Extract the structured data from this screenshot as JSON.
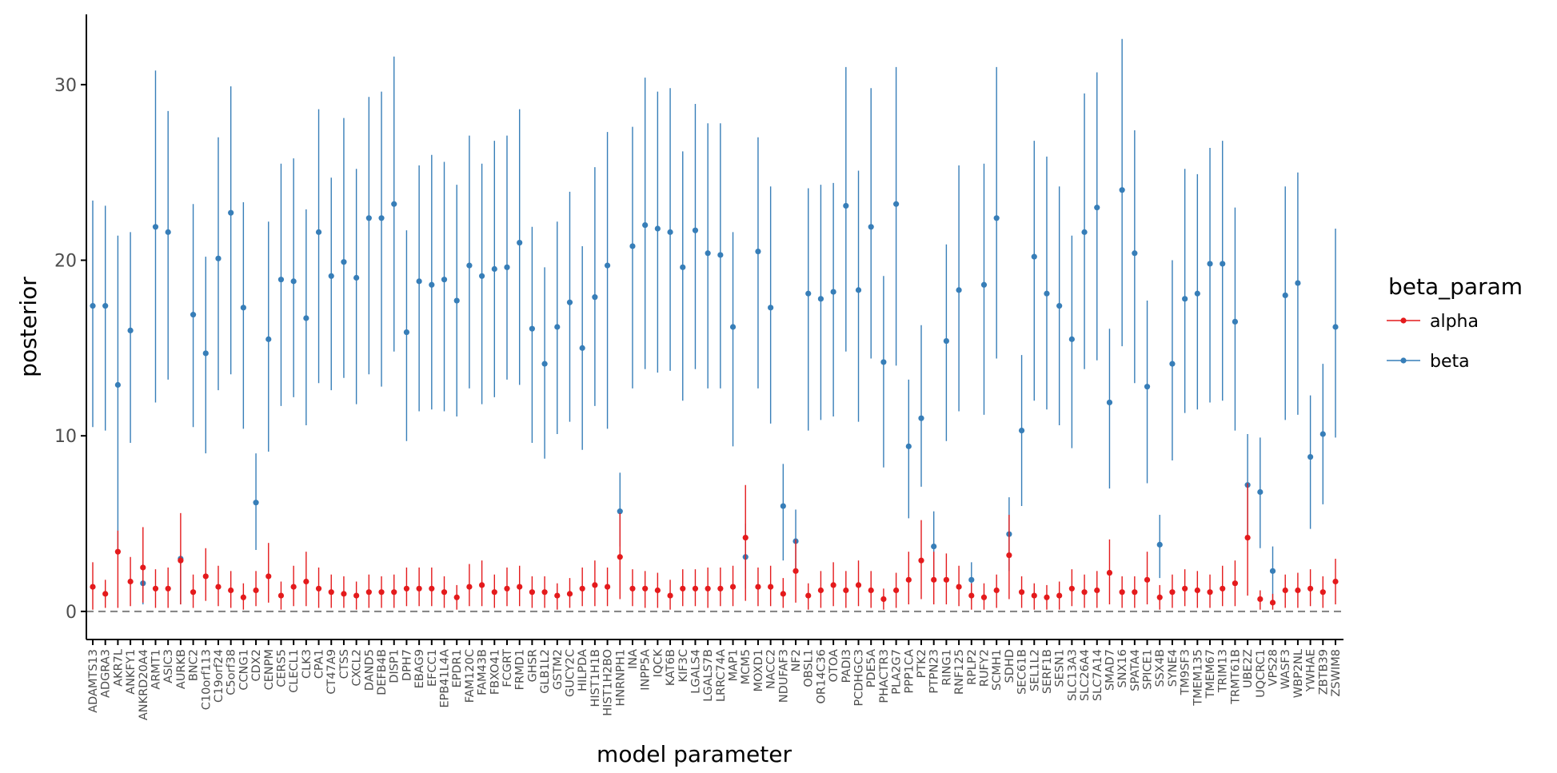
{
  "chart_data": {
    "type": "scatter",
    "subtype": "pointrange",
    "title": "",
    "xlabel": "model parameter",
    "ylabel": "posterior",
    "ylim": [
      -1.6,
      34.0
    ],
    "yticks": [
      0,
      10,
      20,
      30
    ],
    "reference_line": 0,
    "grid": false,
    "legend_title": "beta_param",
    "legend_position": "right",
    "categories": [
      "ADAMTS13",
      "ADGRA3",
      "AKR7L",
      "ANKFY1",
      "ANKRD20A4",
      "ARMT1",
      "ASIC3",
      "AURKB",
      "BNC2",
      "C10orf113",
      "C19orf24",
      "C5orf38",
      "CCNG1",
      "CDX2",
      "CENPM",
      "CERS5",
      "CLECL1",
      "CLK3",
      "CPA1",
      "CT47A9",
      "CTSS",
      "CXCL2",
      "DAND5",
      "DEFB4B",
      "DISP1",
      "DPH7",
      "EBAG9",
      "EFCC1",
      "EPB41L4A",
      "EPDR1",
      "FAM120C",
      "FAM43B",
      "FBXO41",
      "FCGRT",
      "FRMD1",
      "GHSR",
      "GLB1L2",
      "GSTM2",
      "GUCY2C",
      "HILPDA",
      "HIST1H1B",
      "HIST1H2BO",
      "HNRNPH1",
      "INA",
      "INPP5A",
      "IQCK",
      "KAT6B",
      "KIF3C",
      "LGALS4",
      "LGALS7B",
      "LRRC74A",
      "MAP1",
      "MCM5",
      "MOXD1",
      "NACC2",
      "NDUFAF3",
      "NF2",
      "OBSL1",
      "OR14C36",
      "OTOA",
      "PADI3",
      "PCDHGC3",
      "PDE5A",
      "PHACTR3",
      "PLA2G7",
      "PPP1CA",
      "PTK2",
      "PTPN23",
      "RING1",
      "RNF125",
      "RPLP2",
      "RUFY2",
      "SCMH1",
      "SDHD",
      "SEC61B",
      "SEL1L2",
      "SERF1B",
      "SESN1",
      "SLC13A3",
      "SLC26A4",
      "SLC7A14",
      "SMAD7",
      "SNX16",
      "SPATA4",
      "SPICE1",
      "SSX4B",
      "SYNE4",
      "TM9SF3",
      "TMEM135",
      "TMEM67",
      "TRIM13",
      "TRMT61B",
      "UBE2Z",
      "UQCRC1",
      "VPS28",
      "WASF3",
      "WBP2NL",
      "YWHAE",
      "ZBTB39",
      "ZSWIM8"
    ],
    "series": [
      {
        "name": "alpha",
        "color": "#e41a1c",
        "values": [
          1.4,
          1.0,
          3.4,
          1.7,
          2.5,
          1.3,
          1.3,
          2.9,
          1.1,
          2.0,
          1.4,
          1.2,
          0.8,
          1.2,
          2.0,
          0.9,
          1.4,
          1.7,
          1.3,
          1.1,
          1.0,
          0.9,
          1.1,
          1.1,
          1.1,
          1.3,
          1.3,
          1.3,
          1.1,
          0.8,
          1.4,
          1.5,
          1.1,
          1.3,
          1.4,
          1.1,
          1.1,
          0.9,
          1.0,
          1.3,
          1.5,
          1.4,
          3.1,
          1.3,
          1.3,
          1.2,
          0.9,
          1.3,
          1.3,
          1.3,
          1.3,
          1.4,
          4.2,
          1.4,
          1.4,
          1.0,
          2.3,
          0.9,
          1.2,
          1.5,
          1.2,
          1.5,
          1.2,
          0.7,
          1.2,
          1.8,
          2.9,
          1.8,
          1.8,
          1.4,
          0.9,
          0.8,
          1.2,
          3.2,
          1.1,
          0.9,
          0.8,
          0.9,
          1.3,
          1.1,
          1.2,
          2.2,
          1.1,
          1.1,
          1.8,
          0.8,
          1.1,
          1.3,
          1.2,
          1.1,
          1.3,
          1.6,
          4.2,
          0.7,
          0.5,
          1.2,
          1.2,
          1.3,
          1.1,
          1.7
        ],
        "lower": [
          0.1,
          0.2,
          0.2,
          0.3,
          0.5,
          0.2,
          0.2,
          0.4,
          0.2,
          0.6,
          0.3,
          0.2,
          0.1,
          0.3,
          0.5,
          0.1,
          0.3,
          0.3,
          0.2,
          0.2,
          0.2,
          0.1,
          0.2,
          0.2,
          0.2,
          0.3,
          0.3,
          0.3,
          0.2,
          0.1,
          0.3,
          0.3,
          0.2,
          0.3,
          0.3,
          0.2,
          0.2,
          0.1,
          0.2,
          0.3,
          0.3,
          0.3,
          0.7,
          0.3,
          0.2,
          0.2,
          0.1,
          0.3,
          0.3,
          0.2,
          0.3,
          0.3,
          0.6,
          0.3,
          0.3,
          0.2,
          0.5,
          0.1,
          0.2,
          0.3,
          0.2,
          0.3,
          0.2,
          0.1,
          0.2,
          0.4,
          0.7,
          0.4,
          0.4,
          0.3,
          0.1,
          0.1,
          0.2,
          0.7,
          0.2,
          0.1,
          0.1,
          0.1,
          0.3,
          0.2,
          0.2,
          0.4,
          0.2,
          0.2,
          0.4,
          0.1,
          0.2,
          0.3,
          0.2,
          0.2,
          0.3,
          0.3,
          0.9,
          0.1,
          0.1,
          0.2,
          0.2,
          0.3,
          0.2,
          0.4
        ],
        "upper": [
          2.8,
          1.8,
          4.6,
          3.1,
          4.8,
          2.4,
          2.5,
          5.6,
          2.1,
          3.6,
          2.6,
          2.3,
          1.6,
          2.3,
          3.9,
          1.7,
          2.6,
          3.4,
          2.5,
          2.1,
          2.0,
          1.7,
          2.1,
          2.0,
          2.1,
          2.5,
          2.5,
          2.5,
          2.0,
          1.5,
          2.7,
          2.9,
          2.1,
          2.5,
          2.6,
          2.0,
          2.0,
          1.6,
          1.9,
          2.5,
          2.9,
          2.5,
          5.6,
          2.4,
          2.3,
          2.2,
          1.8,
          2.4,
          2.4,
          2.5,
          2.5,
          2.6,
          7.2,
          2.5,
          2.6,
          1.9,
          4.1,
          1.6,
          2.3,
          2.8,
          2.3,
          2.9,
          2.3,
          1.3,
          2.2,
          3.4,
          5.2,
          3.4,
          3.3,
          2.6,
          1.6,
          1.6,
          2.1,
          5.5,
          2.0,
          1.6,
          1.5,
          1.7,
          2.4,
          2.1,
          2.3,
          4.1,
          2.0,
          2.0,
          3.4,
          1.5,
          2.1,
          2.4,
          2.3,
          2.1,
          2.6,
          2.9,
          7.3,
          1.2,
          1.0,
          2.1,
          2.2,
          2.4,
          2.0,
          3.0
        ]
      },
      {
        "name": "beta",
        "color": "#377eb8",
        "values": [
          17.4,
          17.4,
          12.9,
          16.0,
          1.6,
          21.9,
          21.6,
          3.0,
          16.9,
          14.7,
          20.1,
          22.7,
          17.3,
          6.2,
          15.5,
          18.9,
          18.8,
          16.7,
          21.6,
          19.1,
          19.9,
          19.0,
          22.4,
          22.4,
          23.2,
          15.9,
          18.8,
          18.6,
          18.9,
          17.7,
          19.7,
          19.1,
          19.5,
          19.6,
          21.0,
          16.1,
          14.1,
          16.2,
          17.6,
          15.0,
          17.9,
          19.7,
          5.7,
          20.8,
          22.0,
          21.8,
          21.6,
          19.6,
          21.7,
          20.4,
          20.3,
          16.2,
          3.1,
          20.5,
          17.3,
          6.0,
          4.0,
          18.1,
          17.8,
          18.2,
          23.1,
          18.3,
          21.9,
          14.2,
          23.2,
          9.4,
          11.0,
          3.7,
          15.4,
          18.3,
          1.8,
          18.6,
          22.4,
          4.4,
          10.3,
          20.2,
          18.1,
          17.4,
          15.5,
          21.6,
          23.0,
          11.9,
          24.0,
          20.4,
          12.8,
          3.8,
          14.1,
          17.8,
          18.1,
          19.8,
          19.8,
          16.5,
          7.2,
          6.8,
          2.3,
          18.0,
          18.7,
          8.8,
          10.1,
          16.2
        ],
        "lower": [
          10.5,
          10.3,
          3.5,
          9.6,
          0.4,
          11.9,
          13.2,
          0.4,
          10.5,
          9.0,
          12.6,
          13.5,
          10.4,
          3.5,
          9.1,
          11.7,
          12.2,
          10.6,
          13.0,
          12.6,
          13.3,
          11.8,
          13.5,
          12.8,
          14.8,
          9.7,
          11.4,
          11.5,
          11.4,
          11.1,
          12.7,
          11.8,
          12.2,
          13.2,
          12.9,
          9.6,
          8.7,
          10.1,
          10.8,
          9.2,
          11.7,
          10.4,
          3.7,
          12.7,
          13.8,
          13.6,
          13.7,
          12.0,
          13.8,
          12.7,
          12.7,
          9.4,
          1.3,
          12.7,
          10.7,
          2.9,
          2.3,
          10.3,
          10.9,
          11.1,
          14.8,
          10.8,
          14.4,
          8.2,
          14.0,
          5.3,
          7.1,
          1.9,
          9.7,
          11.4,
          0.6,
          11.2,
          14.4,
          2.3,
          6.0,
          12.0,
          11.5,
          10.6,
          9.3,
          13.8,
          14.3,
          7.0,
          15.1,
          13.0,
          7.3,
          1.9,
          8.6,
          11.3,
          11.5,
          11.9,
          12.0,
          10.3,
          4.3,
          3.6,
          0.6,
          10.9,
          11.2,
          4.7,
          6.1,
          9.9
        ],
        "upper": [
          23.4,
          23.1,
          21.4,
          21.6,
          2.7,
          30.8,
          28.5,
          3.2,
          23.2,
          20.2,
          27.0,
          29.9,
          23.3,
          9.0,
          22.2,
          25.5,
          25.8,
          22.9,
          28.6,
          24.7,
          28.1,
          25.2,
          29.3,
          29.6,
          31.6,
          21.7,
          25.4,
          26.0,
          25.6,
          24.3,
          27.1,
          25.5,
          26.8,
          27.1,
          28.6,
          21.9,
          19.6,
          22.2,
          23.9,
          20.8,
          25.3,
          27.3,
          7.9,
          27.6,
          30.4,
          29.6,
          29.8,
          26.2,
          28.9,
          27.8,
          27.8,
          21.6,
          5.0,
          27.0,
          24.2,
          8.4,
          5.8,
          24.1,
          24.3,
          24.4,
          31.0,
          25.1,
          29.8,
          19.1,
          31.0,
          13.2,
          16.3,
          5.7,
          20.9,
          25.4,
          2.8,
          25.5,
          31.0,
          6.5,
          14.6,
          26.8,
          25.9,
          24.2,
          21.4,
          29.5,
          30.7,
          16.1,
          32.6,
          27.4,
          17.7,
          5.5,
          20.0,
          25.2,
          24.9,
          26.4,
          26.8,
          23.0,
          10.1,
          9.9,
          3.7,
          24.2,
          25.0,
          12.3,
          14.1,
          21.8
        ]
      }
    ]
  }
}
